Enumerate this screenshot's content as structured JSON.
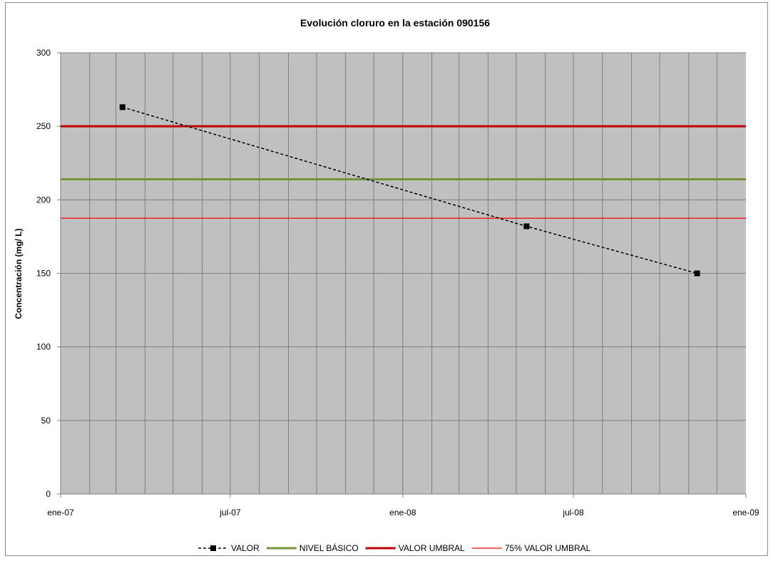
{
  "chart_data": {
    "type": "line",
    "title": "Evolución cloruro en la estación 090156",
    "xlabel": "",
    "ylabel": "Concentración (mg/ L)",
    "ylim": [
      0,
      300
    ],
    "y_ticks": [
      0,
      50,
      100,
      150,
      200,
      250,
      300
    ],
    "x_range": [
      "2007-01-01",
      "2009-01-01"
    ],
    "x_ticks": [
      {
        "date": "2007-01-01",
        "label": "ene-07"
      },
      {
        "date": "2007-07-01",
        "label": "jul-07"
      },
      {
        "date": "2008-01-01",
        "label": "ene-08"
      },
      {
        "date": "2008-07-01",
        "label": "jul-08"
      },
      {
        "date": "2009-01-01",
        "label": "ene-09"
      }
    ],
    "grid": {
      "horizontal": true,
      "vertical": "monthly"
    },
    "legend_position": "bottom",
    "series": [
      {
        "name": "VALOR",
        "style": "dashed-marker",
        "color": "#000000",
        "points": [
          {
            "x": "2007-03-08",
            "y": 263
          },
          {
            "x": "2008-05-12",
            "y": 182
          },
          {
            "x": "2008-11-10",
            "y": 150
          }
        ]
      },
      {
        "name": "NIVEL BÁSICO",
        "style": "constant",
        "color": "#77933c",
        "y": 214
      },
      {
        "name": "VALOR UMBRAL",
        "style": "constant",
        "color": "#c00000",
        "y": 250
      },
      {
        "name": "75% VALOR UMBRAL",
        "style": "constant-thin",
        "color": "#ff0000",
        "y": 187.5
      }
    ],
    "colors": {
      "plot_background": "#c0c0c0"
    }
  }
}
